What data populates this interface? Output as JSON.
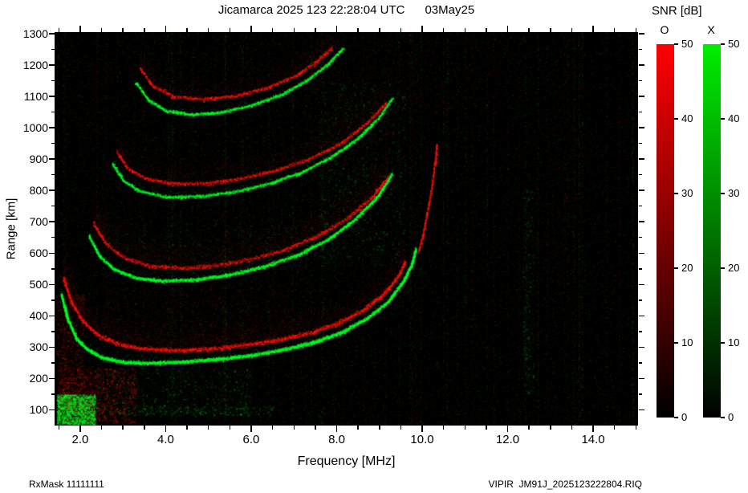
{
  "title": "Jicamarca 2025 123 22:28:04 UTC      03May25",
  "footer": {
    "left": "RxMask 11111111",
    "right": "VIPIR  JM91J_2025123222804.RIQ"
  },
  "colorbar": {
    "title": "SNR [dB]",
    "o_label": "O",
    "x_label": "X",
    "min": 0,
    "max": 50,
    "ticks": [
      0,
      10,
      20,
      30,
      40,
      50
    ],
    "o_color": "#ff0000",
    "x_color": "#00ee00",
    "background": "#000000"
  },
  "chart_data": {
    "type": "heatmap",
    "title": "Jicamarca 2025 123 22:28:04 UTC 03May25",
    "xlabel": "Frequency [MHz]",
    "ylabel": "Range [km]",
    "xlim": [
      1.4,
      15.05
    ],
    "ylim": [
      50,
      1305
    ],
    "x_major_ticks": [
      2.0,
      4.0,
      6.0,
      8.0,
      10.0,
      12.0,
      14.0
    ],
    "x_minor_step": 0.5,
    "y_major_ticks": [
      100,
      200,
      300,
      400,
      500,
      600,
      700,
      800,
      900,
      1000,
      1100,
      1200,
      1300
    ],
    "y_minor_step": 50,
    "snr_range_db": [
      0,
      50
    ],
    "grid": false,
    "plot_background": "#000000",
    "modes": {
      "O": "#ff1408",
      "X": "#00ff28"
    },
    "traces": [
      {
        "name": "hop1-X",
        "mode": "X",
        "core": 2.2,
        "density": 5,
        "fuzz": 10,
        "fuzz_density": 1,
        "points": [
          [
            1.55,
            470
          ],
          [
            1.7,
            390
          ],
          [
            1.9,
            330
          ],
          [
            2.15,
            295
          ],
          [
            2.5,
            268
          ],
          [
            3.0,
            253
          ],
          [
            3.6,
            250
          ],
          [
            4.4,
            254
          ],
          [
            5.2,
            262
          ],
          [
            6.0,
            275
          ],
          [
            6.8,
            294
          ],
          [
            7.5,
            318
          ],
          [
            8.1,
            348
          ],
          [
            8.7,
            392
          ],
          [
            9.2,
            445
          ],
          [
            9.55,
            510
          ],
          [
            9.75,
            565
          ],
          [
            9.85,
            615
          ]
        ]
      },
      {
        "name": "hop1-O",
        "mode": "O",
        "core": 2.8,
        "density": 3,
        "fuzz": 30,
        "fuzz_density": 3,
        "points": [
          [
            1.6,
            520
          ],
          [
            1.8,
            440
          ],
          [
            2.05,
            385
          ],
          [
            2.4,
            340
          ],
          [
            2.9,
            310
          ],
          [
            3.5,
            295
          ],
          [
            4.3,
            290
          ],
          [
            5.1,
            296
          ],
          [
            5.9,
            308
          ],
          [
            6.7,
            326
          ],
          [
            7.4,
            348
          ],
          [
            8.0,
            376
          ],
          [
            8.6,
            418
          ],
          [
            9.1,
            470
          ],
          [
            9.45,
            530
          ],
          [
            9.6,
            575
          ]
        ]
      },
      {
        "name": "f-asymptote-O",
        "mode": "O",
        "core": 1.5,
        "density": 2,
        "fuzz": 0,
        "fuzz_density": 0,
        "points": [
          [
            9.9,
            600
          ],
          [
            10.0,
            650
          ],
          [
            10.08,
            705
          ],
          [
            10.16,
            765
          ],
          [
            10.24,
            830
          ],
          [
            10.3,
            895
          ],
          [
            10.34,
            950
          ]
        ]
      },
      {
        "name": "hop2-X",
        "mode": "X",
        "core": 2.0,
        "density": 4,
        "fuzz": 8,
        "fuzz_density": 1,
        "points": [
          [
            2.2,
            655
          ],
          [
            2.45,
            590
          ],
          [
            2.8,
            548
          ],
          [
            3.3,
            522
          ],
          [
            3.9,
            512
          ],
          [
            4.7,
            516
          ],
          [
            5.5,
            532
          ],
          [
            6.3,
            558
          ],
          [
            7.1,
            596
          ],
          [
            7.8,
            645
          ],
          [
            8.4,
            705
          ],
          [
            8.95,
            780
          ],
          [
            9.3,
            855
          ]
        ]
      },
      {
        "name": "hop2-O",
        "mode": "O",
        "core": 2.5,
        "density": 2,
        "fuzz": 35,
        "fuzz_density": 3,
        "points": [
          [
            2.3,
            695
          ],
          [
            2.6,
            630
          ],
          [
            3.0,
            588
          ],
          [
            3.6,
            560
          ],
          [
            4.4,
            552
          ],
          [
            5.2,
            562
          ],
          [
            6.0,
            582
          ],
          [
            6.8,
            612
          ],
          [
            7.5,
            652
          ],
          [
            8.2,
            708
          ],
          [
            8.8,
            775
          ],
          [
            9.2,
            845
          ]
        ]
      },
      {
        "name": "hop3-X",
        "mode": "X",
        "core": 1.8,
        "density": 3,
        "fuzz": 8,
        "fuzz_density": 1,
        "points": [
          [
            2.75,
            885
          ],
          [
            3.0,
            832
          ],
          [
            3.4,
            798
          ],
          [
            4.0,
            780
          ],
          [
            4.8,
            782
          ],
          [
            5.6,
            796
          ],
          [
            6.4,
            822
          ],
          [
            7.2,
            860
          ],
          [
            7.9,
            910
          ],
          [
            8.5,
            968
          ],
          [
            9.0,
            1035
          ],
          [
            9.3,
            1095
          ]
        ]
      },
      {
        "name": "hop3-O",
        "mode": "O",
        "core": 2.2,
        "density": 2,
        "fuzz": 30,
        "fuzz_density": 2,
        "points": [
          [
            2.85,
            925
          ],
          [
            3.1,
            872
          ],
          [
            3.5,
            840
          ],
          [
            4.2,
            822
          ],
          [
            5.0,
            824
          ],
          [
            5.8,
            840
          ],
          [
            6.6,
            866
          ],
          [
            7.4,
            904
          ],
          [
            8.1,
            952
          ],
          [
            8.7,
            1015
          ],
          [
            9.15,
            1080
          ]
        ]
      },
      {
        "name": "hop4-X",
        "mode": "X",
        "core": 1.8,
        "density": 3,
        "fuzz": 6,
        "fuzz_density": 1,
        "points": [
          [
            3.3,
            1145
          ],
          [
            3.6,
            1088
          ],
          [
            4.0,
            1055
          ],
          [
            4.6,
            1042
          ],
          [
            5.3,
            1050
          ],
          [
            6.0,
            1072
          ],
          [
            6.7,
            1106
          ],
          [
            7.3,
            1152
          ],
          [
            7.8,
            1205
          ],
          [
            8.15,
            1255
          ]
        ]
      },
      {
        "name": "hop4-O",
        "mode": "O",
        "core": 2.2,
        "density": 2,
        "fuzz": 25,
        "fuzz_density": 2,
        "points": [
          [
            3.4,
            1190
          ],
          [
            3.7,
            1132
          ],
          [
            4.2,
            1100
          ],
          [
            4.9,
            1092
          ],
          [
            5.6,
            1102
          ],
          [
            6.3,
            1126
          ],
          [
            7.0,
            1164
          ],
          [
            7.5,
            1210
          ],
          [
            7.9,
            1258
          ]
        ]
      }
    ],
    "noise": {
      "seed": 1337,
      "speckle": 30000,
      "streak_columns": 80,
      "blobs": [
        {
          "name": "e-region-green",
          "mode": "X",
          "f": [
            1.45,
            2.35
          ],
          "h": [
            55,
            150
          ],
          "count": 2600,
          "alpha": 0.55
        },
        {
          "name": "e-region-red",
          "mode": "O",
          "f": [
            1.5,
            3.3
          ],
          "h": [
            60,
            235
          ],
          "count": 1800,
          "alpha": 0.3
        },
        {
          "name": "left-red-column",
          "mode": "O",
          "f": [
            1.45,
            2.1
          ],
          "h": [
            150,
            470
          ],
          "count": 1100,
          "alpha": 0.22
        },
        {
          "name": "below-trace-green",
          "mode": "X",
          "f": [
            2.4,
            6.0
          ],
          "h": [
            80,
            235
          ],
          "count": 900,
          "alpha": 0.18
        },
        {
          "name": "e-layer-line",
          "mode": "X",
          "f": [
            2.0,
            6.5
          ],
          "h": [
            85,
            115
          ],
          "count": 350,
          "alpha": 0.25
        },
        {
          "name": "mid-red-fuzz",
          "mode": "O",
          "f": [
            2.5,
            7.0
          ],
          "h": [
            300,
            500
          ],
          "count": 1400,
          "alpha": 0.13
        },
        {
          "name": "mid-green-fuzz",
          "mode": "X",
          "f": [
            2.5,
            8.0
          ],
          "h": [
            540,
            700
          ],
          "count": 800,
          "alpha": 0.12
        },
        {
          "name": "upper-green-speckle",
          "mode": "X",
          "f": [
            7.6,
            9.6
          ],
          "h": [
            560,
            1150
          ],
          "count": 1600,
          "alpha": 0.16
        },
        {
          "name": "upper-red-speckle",
          "mode": "O",
          "f": [
            7.4,
            9.7
          ],
          "h": [
            850,
            1280
          ],
          "count": 700,
          "alpha": 0.13
        },
        {
          "name": "green-streak",
          "mode": "X",
          "f": [
            12.35,
            12.6
          ],
          "h": [
            150,
            800
          ],
          "count": 380,
          "alpha": 0.18
        },
        {
          "name": "red-streak",
          "mode": "O",
          "f": [
            13.15,
            13.45
          ],
          "h": [
            400,
            1290
          ],
          "count": 300,
          "alpha": 0.12
        },
        {
          "name": "topright-red",
          "mode": "O",
          "f": [
            9.4,
            11.8
          ],
          "h": [
            1050,
            1300
          ],
          "count": 500,
          "alpha": 0.1
        },
        {
          "name": "lefthalf-green-wash",
          "mode": "X",
          "f": [
            1.4,
            8.5
          ],
          "h": [
            50,
            1300
          ],
          "count": 4000,
          "alpha": 0.07
        },
        {
          "name": "lefthalf-red-wash",
          "mode": "O",
          "f": [
            1.4,
            8.5
          ],
          "h": [
            50,
            1300
          ],
          "count": 3000,
          "alpha": 0.07
        }
      ]
    }
  }
}
